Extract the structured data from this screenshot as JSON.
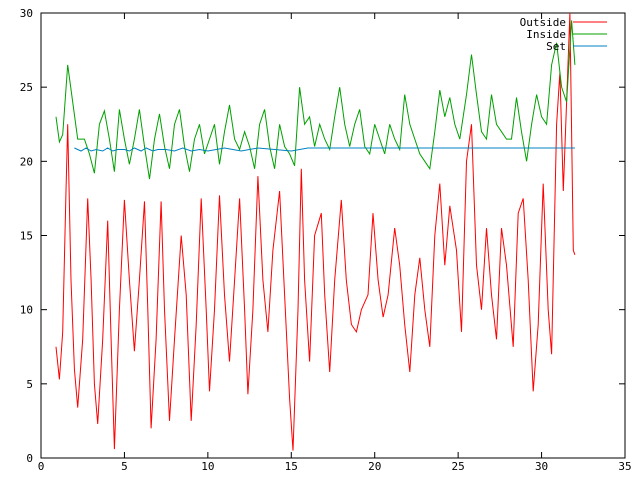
{
  "chart_data": {
    "type": "line",
    "title": "",
    "xlabel": "",
    "ylabel": "",
    "xlim": [
      0,
      35
    ],
    "ylim": [
      0,
      30
    ],
    "x_ticks": [
      0,
      5,
      10,
      15,
      20,
      25,
      30,
      35
    ],
    "y_ticks": [
      0,
      5,
      10,
      15,
      20,
      25,
      30
    ],
    "x_tick_labels": [
      "0",
      "5",
      "10",
      "15",
      "20",
      "25",
      "30",
      "35"
    ],
    "y_tick_labels": [
      "0",
      "5",
      "10",
      "15",
      "20",
      "25",
      "30"
    ],
    "grid": false,
    "legend_position": "top-right",
    "series": [
      {
        "name": "Outside",
        "color": "#ff0000",
        "points": [
          [
            0.9,
            7.5
          ],
          [
            1.1,
            5.3
          ],
          [
            1.3,
            8.5
          ],
          [
            1.5,
            18
          ],
          [
            1.6,
            22.5
          ],
          [
            1.8,
            12
          ],
          [
            2.0,
            6
          ],
          [
            2.2,
            3.4
          ],
          [
            2.5,
            8
          ],
          [
            2.8,
            17.5
          ],
          [
            3.0,
            12
          ],
          [
            3.2,
            5
          ],
          [
            3.4,
            2.3
          ],
          [
            3.7,
            8
          ],
          [
            4.0,
            16
          ],
          [
            4.2,
            8
          ],
          [
            4.4,
            0.6
          ],
          [
            4.7,
            10
          ],
          [
            5.0,
            17.4
          ],
          [
            5.3,
            12
          ],
          [
            5.6,
            7.2
          ],
          [
            5.9,
            12
          ],
          [
            6.2,
            17.3
          ],
          [
            6.4,
            10
          ],
          [
            6.6,
            2.0
          ],
          [
            6.9,
            8
          ],
          [
            7.2,
            17.3
          ],
          [
            7.4,
            10
          ],
          [
            7.7,
            2.5
          ],
          [
            8.0,
            8
          ],
          [
            8.4,
            15
          ],
          [
            8.7,
            11
          ],
          [
            9.0,
            2.5
          ],
          [
            9.3,
            9
          ],
          [
            9.6,
            17.5
          ],
          [
            9.9,
            10
          ],
          [
            10.1,
            4.5
          ],
          [
            10.4,
            10
          ],
          [
            10.7,
            17.7
          ],
          [
            11.0,
            11
          ],
          [
            11.3,
            6.5
          ],
          [
            11.6,
            12
          ],
          [
            11.9,
            17.5
          ],
          [
            12.2,
            10
          ],
          [
            12.4,
            4.3
          ],
          [
            12.7,
            10
          ],
          [
            13.0,
            19.0
          ],
          [
            13.3,
            12
          ],
          [
            13.6,
            8.5
          ],
          [
            13.9,
            14
          ],
          [
            14.3,
            18.0
          ],
          [
            14.6,
            11
          ],
          [
            14.9,
            4.0
          ],
          [
            15.1,
            0.5
          ],
          [
            15.4,
            10
          ],
          [
            15.6,
            19.5
          ],
          [
            15.8,
            12
          ],
          [
            16.1,
            6.5
          ],
          [
            16.4,
            15
          ],
          [
            16.8,
            16.5
          ],
          [
            17.0,
            11
          ],
          [
            17.3,
            5.8
          ],
          [
            17.6,
            12
          ],
          [
            18.0,
            17.4
          ],
          [
            18.3,
            12
          ],
          [
            18.6,
            9.0
          ],
          [
            18.9,
            8.5
          ],
          [
            19.2,
            10
          ],
          [
            19.6,
            11
          ],
          [
            19.9,
            16.5
          ],
          [
            20.2,
            12
          ],
          [
            20.5,
            9.5
          ],
          [
            20.8,
            11
          ],
          [
            21.2,
            15.5
          ],
          [
            21.5,
            13
          ],
          [
            21.8,
            9
          ],
          [
            22.1,
            5.8
          ],
          [
            22.4,
            11
          ],
          [
            22.7,
            13.5
          ],
          [
            23.0,
            10
          ],
          [
            23.3,
            7.5
          ],
          [
            23.6,
            15
          ],
          [
            23.9,
            18.5
          ],
          [
            24.2,
            13
          ],
          [
            24.5,
            17
          ],
          [
            24.9,
            14
          ],
          [
            25.2,
            8.5
          ],
          [
            25.5,
            20
          ],
          [
            25.8,
            22.5
          ],
          [
            26.1,
            13
          ],
          [
            26.4,
            10
          ],
          [
            26.7,
            15.5
          ],
          [
            27.0,
            11
          ],
          [
            27.3,
            8
          ],
          [
            27.6,
            15.5
          ],
          [
            27.9,
            13
          ],
          [
            28.3,
            7.5
          ],
          [
            28.6,
            16.5
          ],
          [
            28.9,
            17.5
          ],
          [
            29.2,
            12
          ],
          [
            29.5,
            4.5
          ],
          [
            29.8,
            9
          ],
          [
            30.1,
            18.5
          ],
          [
            30.4,
            10
          ],
          [
            30.6,
            7.0
          ],
          [
            30.9,
            22.5
          ],
          [
            31.1,
            26
          ],
          [
            31.3,
            18
          ],
          [
            31.5,
            24
          ],
          [
            31.7,
            30
          ],
          [
            31.9,
            14
          ],
          [
            32.0,
            13.7
          ]
        ]
      },
      {
        "name": "Inside",
        "color": "#00a000",
        "points": [
          [
            0.9,
            23.0
          ],
          [
            1.1,
            21.3
          ],
          [
            1.3,
            21.8
          ],
          [
            1.6,
            26.5
          ],
          [
            1.9,
            24
          ],
          [
            2.2,
            21.5
          ],
          [
            2.6,
            21.5
          ],
          [
            2.9,
            20.5
          ],
          [
            3.2,
            19.2
          ],
          [
            3.5,
            22.5
          ],
          [
            3.8,
            23.4
          ],
          [
            4.1,
            21.5
          ],
          [
            4.4,
            19.3
          ],
          [
            4.7,
            23.5
          ],
          [
            5.0,
            21.5
          ],
          [
            5.3,
            19.8
          ],
          [
            5.6,
            21.5
          ],
          [
            5.9,
            23.5
          ],
          [
            6.2,
            21
          ],
          [
            6.5,
            18.8
          ],
          [
            6.8,
            21.5
          ],
          [
            7.1,
            23.2
          ],
          [
            7.4,
            21
          ],
          [
            7.7,
            19.5
          ],
          [
            8.0,
            22.5
          ],
          [
            8.3,
            23.5
          ],
          [
            8.6,
            21
          ],
          [
            8.9,
            19.3
          ],
          [
            9.2,
            21.5
          ],
          [
            9.5,
            22.5
          ],
          [
            9.8,
            20.5
          ],
          [
            10.1,
            21.5
          ],
          [
            10.4,
            22.5
          ],
          [
            10.7,
            19.8
          ],
          [
            11.0,
            22
          ],
          [
            11.3,
            23.8
          ],
          [
            11.6,
            21.5
          ],
          [
            11.9,
            20.8
          ],
          [
            12.2,
            22
          ],
          [
            12.5,
            21
          ],
          [
            12.8,
            19.5
          ],
          [
            13.1,
            22.5
          ],
          [
            13.4,
            23.5
          ],
          [
            13.7,
            21
          ],
          [
            14.0,
            19.5
          ],
          [
            14.3,
            22.5
          ],
          [
            14.6,
            21
          ],
          [
            14.9,
            20.5
          ],
          [
            15.2,
            19.7
          ],
          [
            15.5,
            25.0
          ],
          [
            15.8,
            22.5
          ],
          [
            16.1,
            23
          ],
          [
            16.4,
            21
          ],
          [
            16.7,
            22.5
          ],
          [
            17.0,
            21.5
          ],
          [
            17.3,
            20.8
          ],
          [
            17.6,
            23
          ],
          [
            17.9,
            25.0
          ],
          [
            18.2,
            22.5
          ],
          [
            18.5,
            21
          ],
          [
            18.8,
            22.5
          ],
          [
            19.1,
            23.5
          ],
          [
            19.4,
            21
          ],
          [
            19.7,
            20.5
          ],
          [
            20.0,
            22.5
          ],
          [
            20.3,
            21.5
          ],
          [
            20.6,
            20.5
          ],
          [
            20.9,
            22.5
          ],
          [
            21.2,
            21.5
          ],
          [
            21.5,
            20.8
          ],
          [
            21.8,
            24.5
          ],
          [
            22.1,
            22.5
          ],
          [
            22.4,
            21.5
          ],
          [
            22.7,
            20.5
          ],
          [
            23.0,
            20.0
          ],
          [
            23.3,
            19.5
          ],
          [
            23.6,
            22
          ],
          [
            23.9,
            24.8
          ],
          [
            24.2,
            23
          ],
          [
            24.5,
            24.3
          ],
          [
            24.8,
            22.5
          ],
          [
            25.1,
            21.5
          ],
          [
            25.5,
            24.5
          ],
          [
            25.8,
            27.2
          ],
          [
            26.1,
            24.5
          ],
          [
            26.4,
            22
          ],
          [
            26.7,
            21.5
          ],
          [
            27.0,
            24.5
          ],
          [
            27.3,
            22.5
          ],
          [
            27.6,
            22
          ],
          [
            27.9,
            21.5
          ],
          [
            28.2,
            21.5
          ],
          [
            28.5,
            24.3
          ],
          [
            28.8,
            22
          ],
          [
            29.1,
            20
          ],
          [
            29.4,
            22.5
          ],
          [
            29.7,
            24.5
          ],
          [
            30.0,
            23
          ],
          [
            30.3,
            22.5
          ],
          [
            30.6,
            26.5
          ],
          [
            30.9,
            28
          ],
          [
            31.2,
            25
          ],
          [
            31.5,
            24
          ],
          [
            31.8,
            29.5
          ],
          [
            32.0,
            26.5
          ]
        ]
      },
      {
        "name": "Set",
        "color": "#0080c0",
        "points": [
          [
            2.0,
            20.9
          ],
          [
            2.4,
            20.7
          ],
          [
            2.7,
            20.9
          ],
          [
            3.0,
            20.7
          ],
          [
            3.3,
            20.8
          ],
          [
            3.7,
            20.7
          ],
          [
            4.0,
            20.9
          ],
          [
            4.3,
            20.7
          ],
          [
            4.6,
            20.8
          ],
          [
            5.0,
            20.8
          ],
          [
            5.3,
            20.7
          ],
          [
            5.6,
            20.9
          ],
          [
            6.0,
            20.7
          ],
          [
            6.3,
            20.9
          ],
          [
            6.7,
            20.7
          ],
          [
            7.0,
            20.8
          ],
          [
            7.5,
            20.8
          ],
          [
            8.0,
            20.7
          ],
          [
            8.5,
            20.9
          ],
          [
            9.0,
            20.7
          ],
          [
            9.5,
            20.8
          ],
          [
            10.0,
            20.7
          ],
          [
            11.0,
            20.9
          ],
          [
            12.0,
            20.7
          ],
          [
            13.0,
            20.9
          ],
          [
            14.0,
            20.8
          ],
          [
            15.0,
            20.7
          ],
          [
            16.0,
            20.9
          ],
          [
            32.0,
            20.9
          ]
        ]
      }
    ]
  }
}
